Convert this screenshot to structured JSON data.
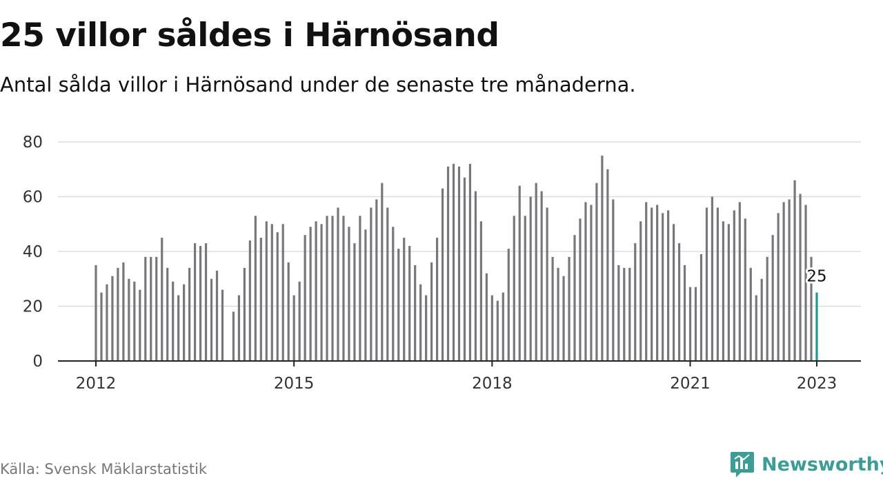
{
  "header": {
    "title": "25 villor såldes i Härnösand",
    "subtitle": "Antal sålda villor i Härnösand under de senaste tre månaderna."
  },
  "footer": {
    "source": "Källa: Svensk Mäklarstatistik",
    "brand": "Newsworthy",
    "brand_icon": "newsworthy-logo-icon"
  },
  "colors": {
    "bar": "#77767b",
    "highlight": "#1a9b92",
    "grid": "#dddddd",
    "axis": "#222222",
    "brand": "#3a9e96"
  },
  "chart_data": {
    "type": "bar",
    "title": "25 villor såldes i Härnösand",
    "xlabel": "",
    "ylabel": "",
    "ylim": [
      0,
      80
    ],
    "yticks": [
      "0",
      "20",
      "40",
      "60",
      "80"
    ],
    "xticks": [
      "2012",
      "2015",
      "2018",
      "2021",
      "2023"
    ],
    "grid": true,
    "start": "2012-01",
    "values": [
      35,
      25,
      28,
      31,
      34,
      36,
      30,
      29,
      26,
      38,
      38,
      38,
      45,
      34,
      29,
      24,
      28,
      34,
      43,
      42,
      43,
      30,
      33,
      26,
      null,
      18,
      24,
      34,
      44,
      53,
      45,
      51,
      50,
      47,
      50,
      36,
      24,
      29,
      46,
      49,
      51,
      50,
      53,
      53,
      56,
      53,
      49,
      43,
      53,
      48,
      56,
      59,
      65,
      56,
      49,
      41,
      45,
      42,
      35,
      28,
      24,
      36,
      45,
      63,
      71,
      72,
      71,
      67,
      72,
      62,
      51,
      32,
      24,
      22,
      25,
      41,
      53,
      64,
      53,
      60,
      65,
      62,
      56,
      38,
      34,
      31,
      38,
      46,
      52,
      58,
      57,
      65,
      75,
      70,
      59,
      35,
      34,
      34,
      43,
      51,
      58,
      56,
      57,
      54,
      55,
      50,
      43,
      35,
      27,
      27,
      39,
      56,
      60,
      56,
      51,
      50,
      55,
      58,
      52,
      34,
      24,
      30,
      38,
      46,
      54,
      58,
      59,
      66,
      61,
      57,
      38,
      25
    ],
    "highlight": {
      "label": "25",
      "value": 25
    }
  }
}
